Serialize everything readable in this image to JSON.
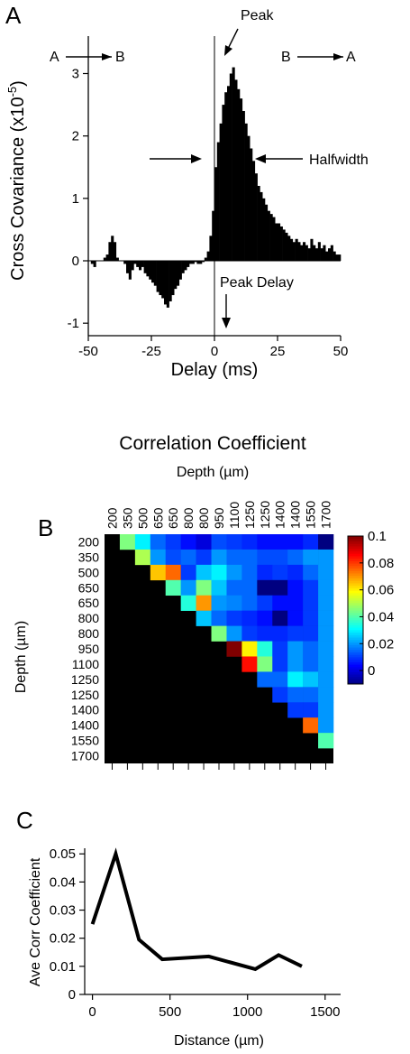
{
  "chart_data": [
    {
      "panel": "A",
      "type": "bar",
      "xlabel": "Delay (ms)",
      "ylabel": "Cross Covariance (x10",
      "ylabel_exponent": "-5",
      "ylabel_end": ")",
      "xlim": [
        -50,
        50
      ],
      "ylim": [
        -1.2,
        3.6
      ],
      "xticks": [
        -50,
        -25,
        0,
        25,
        50
      ],
      "yticks": [
        -1,
        0,
        1,
        2,
        3
      ],
      "annotations": {
        "left_direction": "A",
        "left_direction_to": "B",
        "right_direction": "B",
        "right_direction_to": "A",
        "peak": "Peak",
        "halfwidth": "Halfwidth",
        "peak_delay": "Peak Delay"
      },
      "x": [
        -50,
        -49,
        -48,
        -47,
        -46,
        -45,
        -44,
        -43,
        -42,
        -41,
        -40,
        -39,
        -38,
        -37,
        -36,
        -35,
        -34,
        -33,
        -32,
        -31,
        -30,
        -29,
        -28,
        -27,
        -26,
        -25,
        -24,
        -23,
        -22,
        -21,
        -20,
        -19,
        -18,
        -17,
        -16,
        -15,
        -14,
        -13,
        -12,
        -11,
        -10,
        -9,
        -8,
        -7,
        -6,
        -5,
        -4,
        -3,
        -2,
        -1,
        0,
        1,
        2,
        3,
        4,
        5,
        6,
        7,
        8,
        9,
        10,
        11,
        12,
        13,
        14,
        15,
        16,
        17,
        18,
        19,
        20,
        21,
        22,
        23,
        24,
        25,
        26,
        27,
        28,
        29,
        30,
        31,
        32,
        33,
        34,
        35,
        36,
        37,
        38,
        39,
        40,
        41,
        42,
        43,
        44,
        45,
        46,
        47,
        48,
        49
      ],
      "values": [
        0,
        -0.05,
        -0.1,
        0,
        0,
        0,
        0.05,
        0.1,
        0.3,
        0.4,
        0.3,
        0.05,
        0,
        0,
        -0.05,
        -0.2,
        -0.3,
        -0.15,
        -0.05,
        -0.1,
        -0.15,
        -0.1,
        -0.2,
        -0.25,
        -0.3,
        -0.35,
        -0.4,
        -0.5,
        -0.55,
        -0.6,
        -0.7,
        -0.75,
        -0.65,
        -0.55,
        -0.45,
        -0.4,
        -0.3,
        -0.2,
        -0.15,
        -0.1,
        -0.05,
        -0.05,
        -0.02,
        -0.05,
        -0.05,
        -0.02,
        0.05,
        0.15,
        0.4,
        0.8,
        1.5,
        1.9,
        2.2,
        2.5,
        2.7,
        2.8,
        3.0,
        3.1,
        2.9,
        2.75,
        2.6,
        2.4,
        2.2,
        2.0,
        1.8,
        1.6,
        1.4,
        1.2,
        1.1,
        1.0,
        0.9,
        0.8,
        0.75,
        0.7,
        0.6,
        0.6,
        0.55,
        0.5,
        0.45,
        0.4,
        0.35,
        0.3,
        0.35,
        0.3,
        0.25,
        0.3,
        0.25,
        0.2,
        0.35,
        0.25,
        0.2,
        0.3,
        0.2,
        0.25,
        0.15,
        0.2,
        0.25,
        0.15,
        0.1,
        0.1
      ]
    },
    {
      "panel": "B",
      "type": "heatmap",
      "title": "Correlation Coefficient",
      "xlabel": "Depth (",
      "xlabel_unit": "m)",
      "ylabel": "Depth (",
      "ylabel_unit": "m)",
      "mu": "µ",
      "depths": [
        "200",
        "350",
        "500",
        "650",
        "650",
        "800",
        "800",
        "950",
        "1100",
        "1250",
        "1250",
        "1400",
        "1400",
        "1550",
        "1700"
      ],
      "colorbar": {
        "min": -0.01,
        "max": 0.1,
        "ticks": [
          0,
          0.02,
          0.04,
          0.06,
          0.08,
          0.1
        ],
        "labels": [
          "0",
          "0.02",
          "0.04",
          "0.06",
          "0.08",
          "0.1"
        ]
      },
      "matrix": [
        [
          null,
          0.045,
          0.03,
          0.015,
          0.01,
          0.005,
          0.0,
          0.012,
          0.01,
          0.008,
          0.005,
          0.005,
          0.005,
          0.008,
          -0.01
        ],
        [
          null,
          null,
          0.05,
          0.02,
          0.012,
          0.015,
          0.01,
          0.02,
          0.015,
          0.015,
          0.012,
          0.012,
          0.015,
          0.02,
          0.02
        ],
        [
          null,
          null,
          null,
          0.065,
          0.075,
          0.01,
          0.025,
          0.03,
          0.02,
          0.015,
          0.008,
          0.01,
          0.008,
          0.015,
          0.02
        ],
        [
          null,
          null,
          null,
          null,
          0.04,
          0.02,
          0.045,
          0.025,
          0.015,
          0.015,
          -0.01,
          -0.01,
          0.005,
          0.01,
          0.02
        ],
        [
          null,
          null,
          null,
          null,
          null,
          0.035,
          0.07,
          0.02,
          0.018,
          0.015,
          0.01,
          0.005,
          0.005,
          0.01,
          0.02
        ],
        [
          null,
          null,
          null,
          null,
          null,
          null,
          0.025,
          0.015,
          0.01,
          0.008,
          0.005,
          -0.01,
          0.005,
          0.01,
          0.02
        ],
        [
          null,
          null,
          null,
          null,
          null,
          null,
          null,
          0.045,
          0.02,
          0.01,
          0.008,
          0.008,
          0.01,
          0.01,
          0.02
        ],
        [
          null,
          null,
          null,
          null,
          null,
          null,
          null,
          null,
          0.1,
          0.06,
          0.035,
          0.01,
          0.02,
          0.015,
          0.02
        ],
        [
          null,
          null,
          null,
          null,
          null,
          null,
          null,
          null,
          null,
          0.085,
          0.045,
          0.01,
          0.02,
          0.015,
          0.02
        ],
        [
          null,
          null,
          null,
          null,
          null,
          null,
          null,
          null,
          null,
          null,
          0.015,
          0.015,
          0.03,
          0.025,
          0.02
        ],
        [
          null,
          null,
          null,
          null,
          null,
          null,
          null,
          null,
          null,
          null,
          null,
          0.01,
          0.015,
          0.015,
          0.02
        ],
        [
          null,
          null,
          null,
          null,
          null,
          null,
          null,
          null,
          null,
          null,
          null,
          null,
          0.01,
          0.01,
          0.02
        ],
        [
          null,
          null,
          null,
          null,
          null,
          null,
          null,
          null,
          null,
          null,
          null,
          null,
          null,
          0.075,
          0.02
        ],
        [
          null,
          null,
          null,
          null,
          null,
          null,
          null,
          null,
          null,
          null,
          null,
          null,
          null,
          null,
          0.04
        ],
        [
          null,
          null,
          null,
          null,
          null,
          null,
          null,
          null,
          null,
          null,
          null,
          null,
          null,
          null,
          null
        ]
      ]
    },
    {
      "panel": "C",
      "type": "line",
      "xlabel": "Distance (",
      "xlabel_unit": "m)",
      "mu": "µ",
      "ylabel": "Ave Corr Coefficient",
      "xlim": [
        -50,
        1600
      ],
      "ylim": [
        0,
        0.052
      ],
      "xticks": [
        0,
        500,
        1000,
        1500
      ],
      "yticks": [
        0,
        0.01,
        0.02,
        0.03,
        0.04,
        0.05
      ],
      "ytick_labels": [
        "0",
        "0.01",
        "0.02",
        "0.03",
        "0.04",
        "0.05"
      ],
      "x": [
        0,
        150,
        300,
        450,
        750,
        1050,
        1200,
        1350
      ],
      "y": [
        0.025,
        0.05,
        0.0195,
        0.0125,
        0.0135,
        0.009,
        0.014,
        0.01
      ]
    }
  ]
}
